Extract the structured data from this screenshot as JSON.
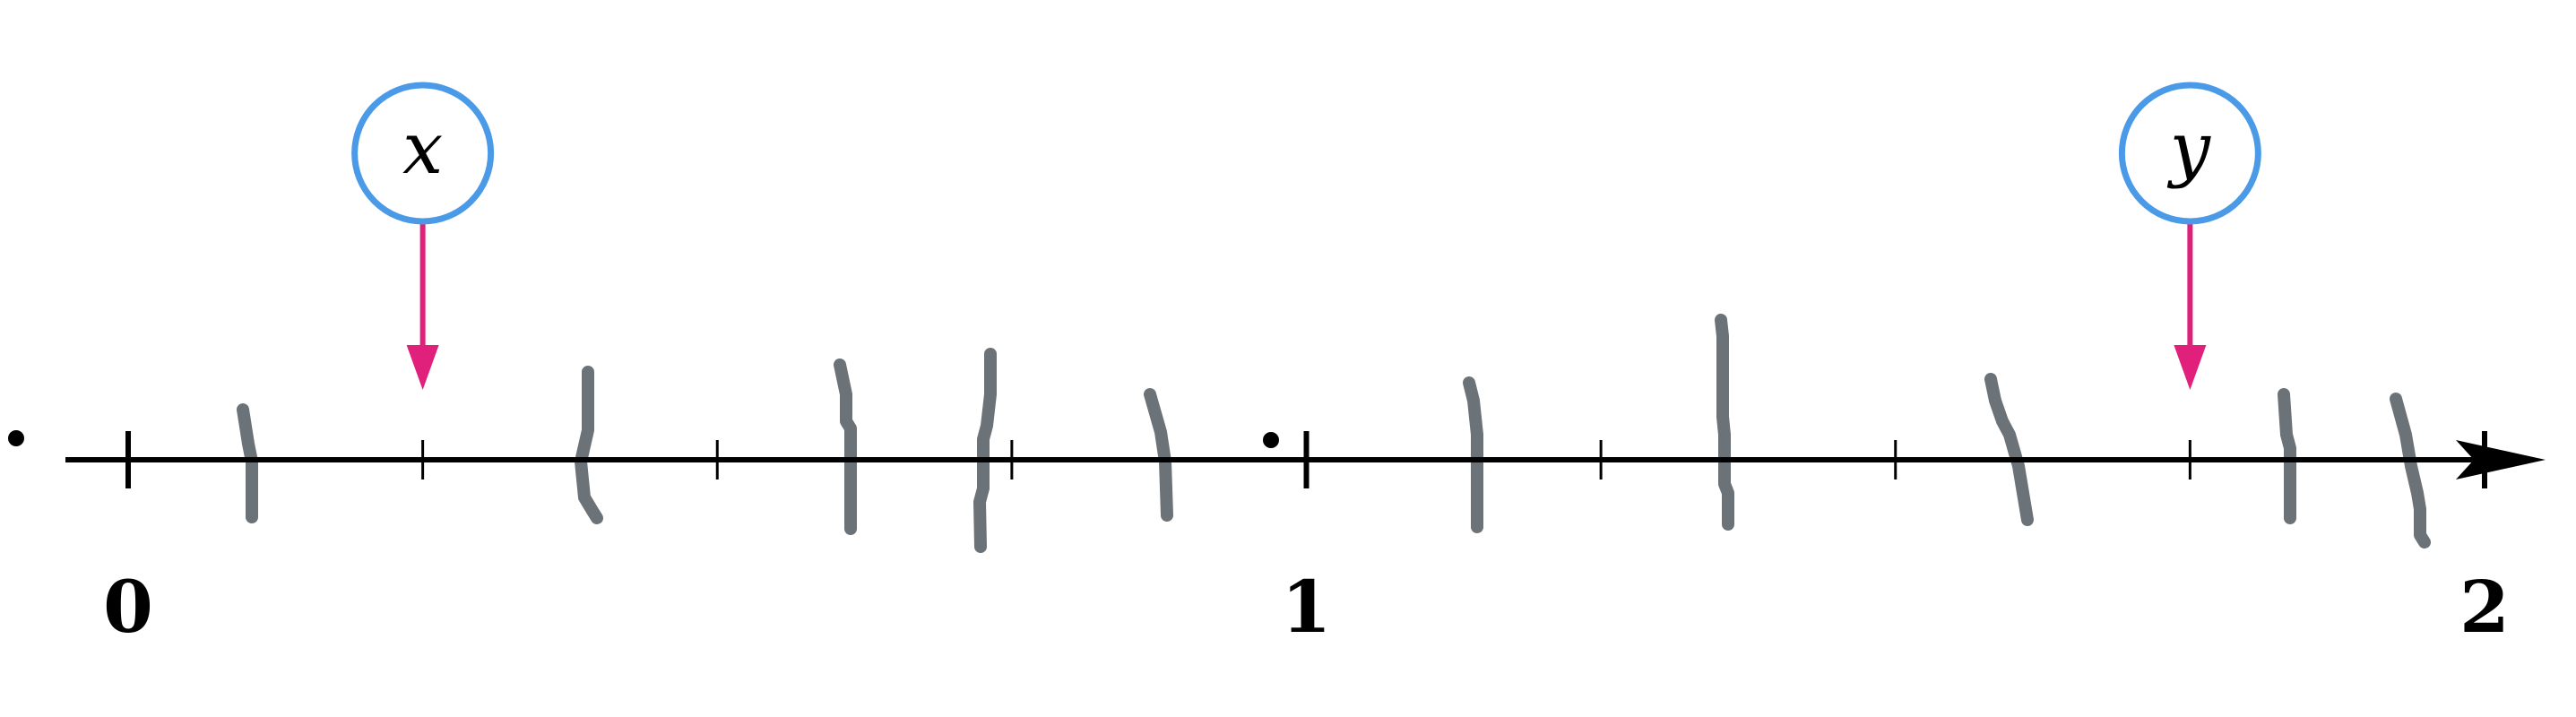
{
  "number_line": {
    "min": 0,
    "max": 2,
    "subdivisions_per_unit": 4,
    "labels": [
      {
        "value": 0,
        "text": "0"
      },
      {
        "value": 1,
        "text": "1"
      },
      {
        "value": 2,
        "text": "2"
      }
    ],
    "markers": [
      {
        "letter": "x",
        "value": 0.25
      },
      {
        "letter": "y",
        "value": 1.75
      }
    ],
    "colors": {
      "axis": "#000000",
      "marker_circle": "#4a9ae8",
      "marker_arrow": "#e0207a",
      "hand_marks": "#6b7278"
    }
  }
}
